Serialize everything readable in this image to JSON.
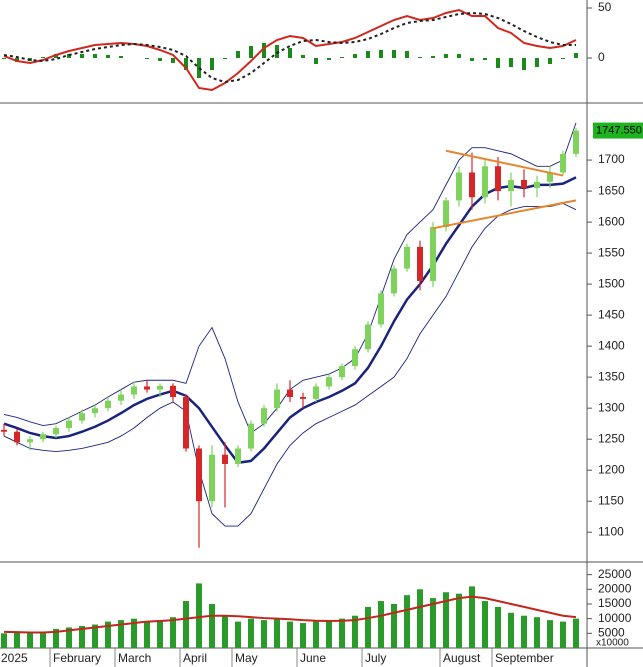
{
  "chart_data": [
    {
      "type": "macd",
      "ylim": [
        -45,
        58
      ],
      "yticks": [
        0,
        50
      ],
      "hist_color": "#1a8a1a",
      "histogram": [
        -1,
        -4,
        -3,
        1,
        4,
        4,
        4,
        4,
        3,
        2,
        0,
        -1,
        -3,
        -5,
        -12,
        -20,
        -12,
        -1,
        7,
        12,
        15,
        13,
        10,
        3,
        -6,
        -2,
        1,
        4,
        7,
        8,
        8,
        7,
        1,
        2,
        4,
        4,
        -3,
        -2,
        -10,
        -9,
        -12,
        -9,
        -6,
        -1,
        5
      ],
      "lines": [
        {
          "color": "#d0281e",
          "dashed": false,
          "values": [
            2,
            -3,
            -5,
            -2,
            3,
            7,
            10,
            13,
            14,
            15,
            14,
            12,
            8,
            3,
            -10,
            -30,
            -32,
            -25,
            -15,
            -3,
            10,
            18,
            22,
            20,
            12,
            14,
            16,
            20,
            26,
            32,
            38,
            42,
            38,
            40,
            45,
            48,
            42,
            42,
            30,
            25,
            15,
            12,
            10,
            12,
            18
          ]
        },
        {
          "color": "#222222",
          "dashed": true,
          "values": [
            3,
            1,
            -2,
            -3,
            -1,
            3,
            6,
            9,
            11,
            13,
            14,
            13,
            11,
            8,
            2,
            -10,
            -20,
            -24,
            -22,
            -15,
            -5,
            5,
            12,
            17,
            18,
            16,
            15,
            16,
            19,
            24,
            30,
            35,
            37,
            38,
            41,
            44,
            45,
            44,
            40,
            34,
            27,
            21,
            16,
            13,
            13
          ]
        }
      ]
    },
    {
      "type": "candlestick",
      "ylim": [
        1052,
        1792
      ],
      "yticks": [
        1100,
        1150,
        1200,
        1250,
        1300,
        1350,
        1400,
        1450,
        1500,
        1550,
        1600,
        1650,
        1700
      ],
      "up_color": "#7fd35c",
      "down_color": "#d62728",
      "open": [
        1265,
        1262,
        1245,
        1250,
        1258,
        1268,
        1280,
        1292,
        1300,
        1312,
        1322,
        1335,
        1330,
        1336,
        1318,
        1235,
        1150,
        1225,
        1210,
        1235,
        1275,
        1300,
        1330,
        1318,
        1315,
        1335,
        1350,
        1368,
        1395,
        1435,
        1485,
        1525,
        1560,
        1505,
        1592,
        1635,
        1680,
        1640,
        1690,
        1650,
        1668,
        1655,
        1665,
        1680,
        1710
      ],
      "high": [
        1275,
        1266,
        1255,
        1262,
        1272,
        1285,
        1298,
        1305,
        1318,
        1330,
        1342,
        1345,
        1340,
        1340,
        1322,
        1240,
        1240,
        1245,
        1240,
        1280,
        1305,
        1340,
        1345,
        1325,
        1340,
        1355,
        1372,
        1400,
        1440,
        1490,
        1530,
        1565,
        1570,
        1600,
        1640,
        1690,
        1712,
        1700,
        1705,
        1680,
        1685,
        1675,
        1690,
        1715,
        1752
      ],
      "low": [
        1255,
        1240,
        1232,
        1245,
        1252,
        1262,
        1275,
        1285,
        1295,
        1305,
        1315,
        1325,
        1318,
        1310,
        1230,
        1075,
        1140,
        1140,
        1205,
        1230,
        1270,
        1295,
        1310,
        1300,
        1310,
        1330,
        1345,
        1362,
        1390,
        1430,
        1480,
        1520,
        1490,
        1495,
        1585,
        1625,
        1620,
        1630,
        1635,
        1625,
        1640,
        1640,
        1655,
        1675,
        1705
      ],
      "close": [
        1262,
        1245,
        1250,
        1258,
        1268,
        1280,
        1292,
        1300,
        1312,
        1322,
        1335,
        1330,
        1336,
        1318,
        1235,
        1150,
        1225,
        1210,
        1235,
        1275,
        1300,
        1330,
        1318,
        1315,
        1335,
        1350,
        1368,
        1395,
        1435,
        1485,
        1525,
        1560,
        1505,
        1592,
        1635,
        1680,
        1640,
        1690,
        1650,
        1668,
        1655,
        1665,
        1680,
        1710,
        1747.55
      ],
      "last_price": {
        "value": 1747.55,
        "label": "1747.550"
      },
      "lines": [
        {
          "color": "#1a237e",
          "width": 2.5,
          "values": [
            1275,
            1268,
            1260,
            1255,
            1252,
            1255,
            1262,
            1270,
            1280,
            1292,
            1305,
            1315,
            1322,
            1328,
            1320,
            1300,
            1270,
            1240,
            1212,
            1215,
            1235,
            1260,
            1285,
            1300,
            1310,
            1318,
            1328,
            1340,
            1365,
            1400,
            1440,
            1475,
            1500,
            1530,
            1565,
            1595,
            1625,
            1645,
            1655,
            1658,
            1655,
            1660,
            1660,
            1662,
            1672
          ]
        },
        {
          "color": "#1a237e",
          "width": 0.9,
          "values": [
            1290,
            1285,
            1278,
            1272,
            1275,
            1285,
            1295,
            1305,
            1318,
            1330,
            1342,
            1345,
            1345,
            1345,
            1340,
            1400,
            1430,
            1380,
            1310,
            1260,
            1275,
            1300,
            1330,
            1345,
            1350,
            1355,
            1365,
            1380,
            1420,
            1480,
            1540,
            1580,
            1600,
            1620,
            1660,
            1700,
            1720,
            1720,
            1715,
            1710,
            1700,
            1690,
            1690,
            1700,
            1760
          ]
        },
        {
          "color": "#1a237e",
          "width": 0.9,
          "values": [
            1255,
            1245,
            1235,
            1232,
            1230,
            1232,
            1235,
            1240,
            1245,
            1255,
            1268,
            1285,
            1300,
            1310,
            1295,
            1200,
            1130,
            1110,
            1110,
            1130,
            1170,
            1210,
            1240,
            1260,
            1275,
            1285,
            1295,
            1305,
            1320,
            1335,
            1350,
            1380,
            1420,
            1450,
            1480,
            1520,
            1560,
            1590,
            1610,
            1620,
            1625,
            1625,
            1625,
            1630,
            1620
          ]
        }
      ],
      "trendlines": [
        {
          "color": "#e8842a",
          "x": [
            34,
            43
          ],
          "values": [
            1715,
            1675
          ]
        },
        {
          "color": "#e8842a",
          "x": [
            33,
            44
          ],
          "values": [
            1590,
            1635
          ]
        }
      ]
    },
    {
      "type": "volume",
      "ylim": [
        0,
        29300
      ],
      "yticks": [
        5000,
        10000,
        15000,
        20000,
        25000
      ],
      "unit_label": "x10000",
      "color": "#2a9a2a",
      "categories": [
        "2025",
        null,
        null,
        null,
        "February",
        null,
        null,
        null,
        null,
        "March",
        null,
        null,
        null,
        null,
        "April",
        null,
        null,
        null,
        "May",
        null,
        null,
        null,
        null,
        "June",
        null,
        null,
        null,
        null,
        "July",
        null,
        null,
        null,
        null,
        null,
        "August",
        null,
        null,
        null,
        "September",
        null,
        null,
        null,
        null,
        null,
        null
      ],
      "values": [
        5000,
        5500,
        5200,
        5000,
        6500,
        7000,
        7500,
        8000,
        9000,
        9500,
        10000,
        9000,
        9500,
        10500,
        16000,
        22000,
        15000,
        11000,
        9000,
        10000,
        9500,
        10000,
        9000,
        8500,
        9000,
        9500,
        10000,
        11000,
        14000,
        16000,
        15000,
        18000,
        20000,
        17000,
        19000,
        18500,
        21000,
        16000,
        14000,
        12000,
        11000,
        10500,
        9500,
        9000,
        10000
      ],
      "ma": {
        "color": "#c0281e",
        "values": [
          5500,
          5400,
          5300,
          5300,
          5500,
          6000,
          6500,
          7000,
          7500,
          8000,
          8500,
          9000,
          9200,
          9500,
          10000,
          10500,
          11000,
          11000,
          10800,
          10500,
          10200,
          10000,
          9800,
          9500,
          9300,
          9200,
          9300,
          9500,
          10200,
          11000,
          12000,
          13000,
          14000,
          15000,
          16000,
          17000,
          17500,
          17000,
          16000,
          15000,
          14000,
          13000,
          12000,
          11000,
          10500
        ]
      }
    }
  ]
}
